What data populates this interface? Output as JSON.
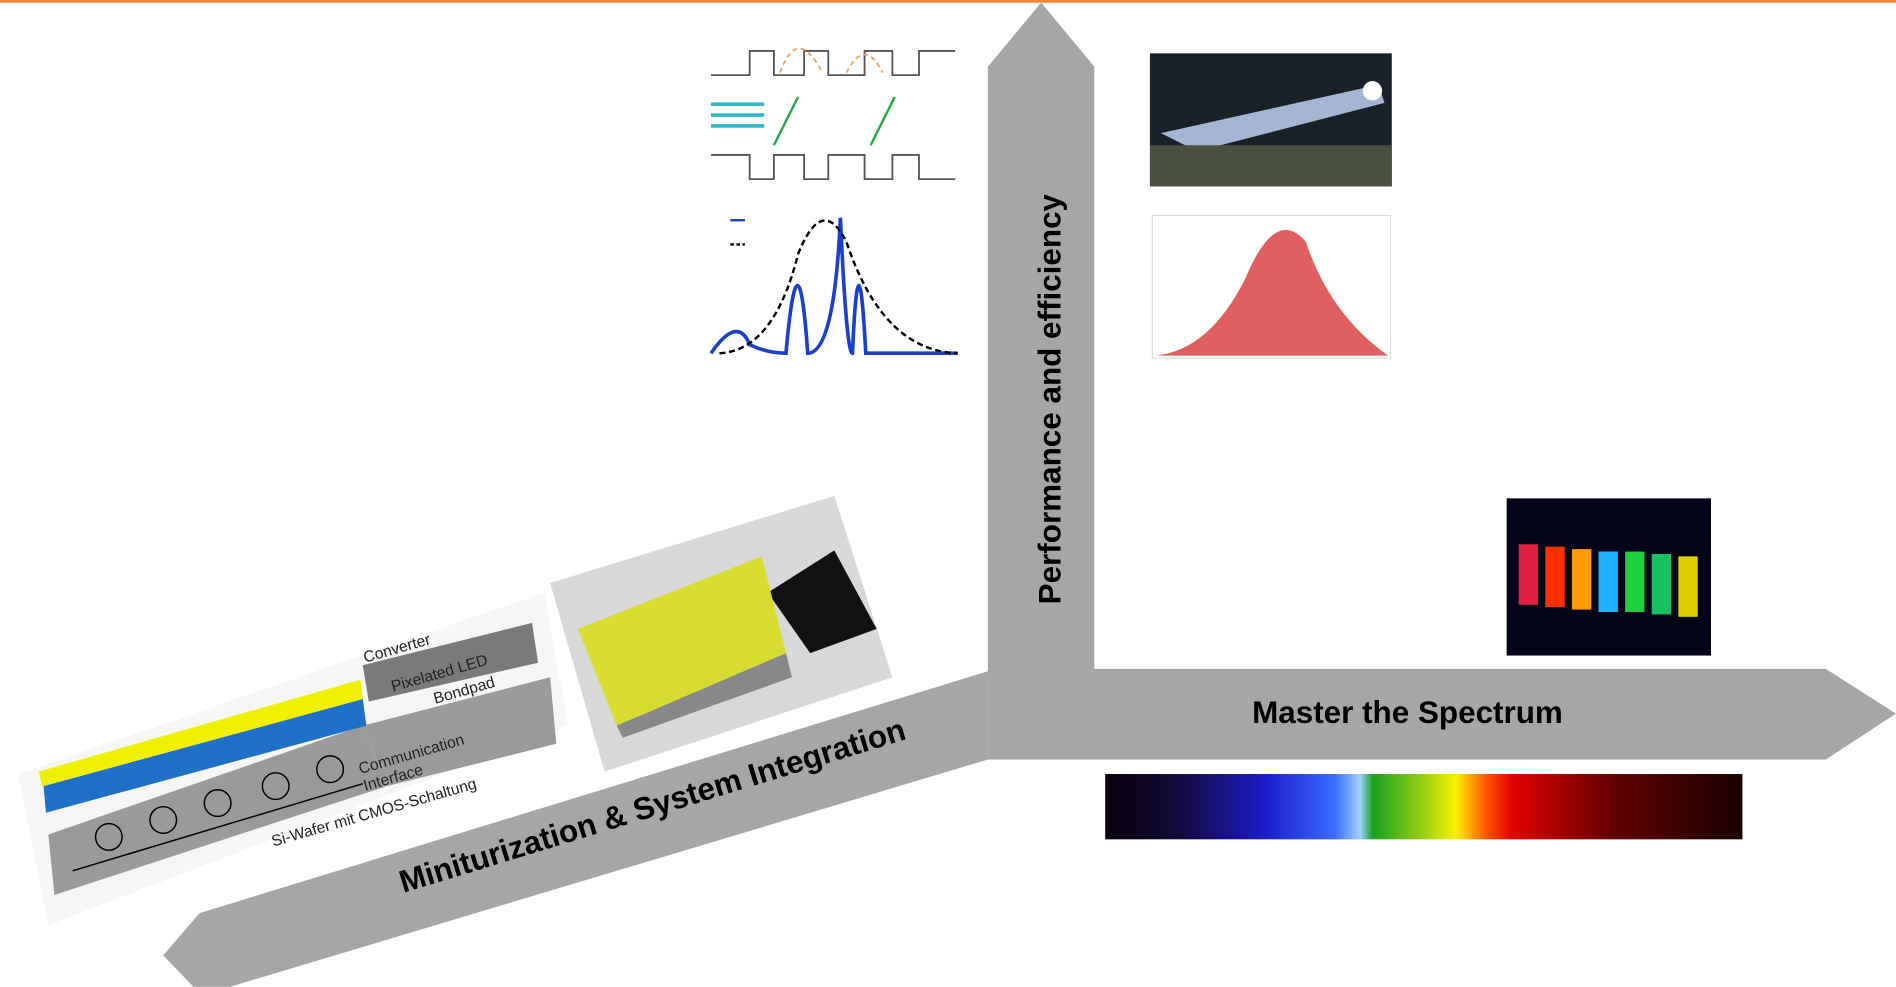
{
  "axes": {
    "vertical": "Performance and efficiency",
    "horizontal": "Master the Spectrum",
    "diagonal": "Miniturization & System Integration"
  },
  "schematic": {
    "labels": [
      "Converter",
      "Pixelated LED",
      "Bondpad",
      "Communication",
      "Interface",
      "Si-Wafer mit CMOS-Schaltung"
    ]
  }
}
